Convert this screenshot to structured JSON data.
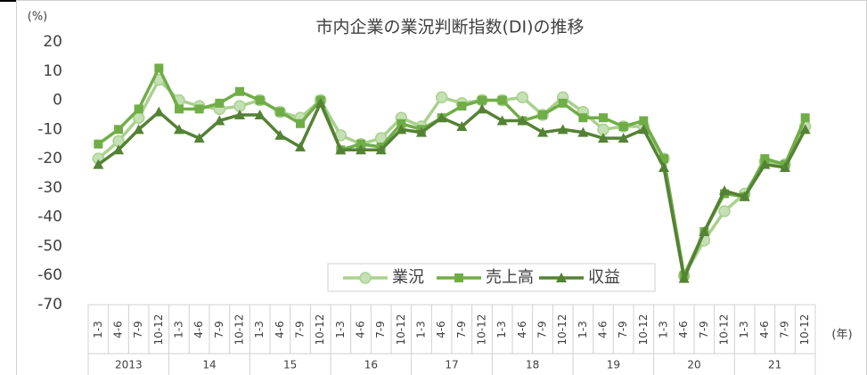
{
  "chart_data": {
    "type": "line",
    "title": "市内企業の業況判断指数(DI)の推移",
    "y_unit": "(%)",
    "x_unit": "(年)",
    "categories": [
      "1-3",
      "4-6",
      "7-9",
      "10-12",
      "1-3",
      "4-6",
      "7-9",
      "10-12",
      "1-3",
      "4-6",
      "7-9",
      "10-12",
      "1-3",
      "4-6",
      "7-9",
      "10-12",
      "1-3",
      "4-6",
      "7-9",
      "10-12",
      "1-3",
      "4-6",
      "7-9",
      "10-12",
      "1-3",
      "4-6",
      "7-9",
      "10-12",
      "1-3",
      "4-6",
      "7-9",
      "10-12",
      "1-3",
      "4-6",
      "7-9",
      "10-12"
    ],
    "groups": [
      "2013",
      "14",
      "15",
      "16",
      "17",
      "18",
      "19",
      "20",
      "21"
    ],
    "series": [
      {
        "name": "業況",
        "color": "#a9d18e",
        "marker": "circle",
        "values": [
          -20,
          -14,
          -6,
          7,
          0,
          -2,
          -3,
          -2,
          0,
          -4,
          -6,
          0,
          -12,
          -15,
          -13,
          -6,
          -9,
          1,
          -1,
          0,
          0,
          1,
          -5,
          1,
          -4,
          -10,
          -9,
          -9,
          -20,
          -60,
          -48,
          -38,
          -32,
          -21,
          -22,
          -9
        ]
      },
      {
        "name": "売上高",
        "color": "#70ad47",
        "marker": "square",
        "values": [
          -15,
          -10,
          -3,
          11,
          -3,
          -3,
          -1,
          3,
          0,
          -4,
          -8,
          0,
          -17,
          -15,
          -16,
          -8,
          -10,
          -6,
          -2,
          0,
          0,
          -7,
          -5,
          -1,
          -6,
          -6,
          -9,
          -7,
          -20,
          -60,
          -45,
          -32,
          -33,
          -20,
          -22,
          -6
        ]
      },
      {
        "name": "収益",
        "color": "#548235",
        "marker": "triangle",
        "values": [
          -22,
          -17,
          -10,
          -4,
          -10,
          -13,
          -7,
          -5,
          -5,
          -12,
          -16,
          -1,
          -17,
          -17,
          -17,
          -10,
          -11,
          -6,
          -9,
          -3,
          -7,
          -7,
          -11,
          -10,
          -11,
          -13,
          -13,
          -10,
          -23,
          -61,
          -45,
          -31,
          -33,
          -22,
          -23,
          -10
        ]
      }
    ],
    "ylim": [
      -70,
      20
    ],
    "yticks": [
      -70,
      -60,
      -50,
      -40,
      -30,
      -20,
      -10,
      0,
      10,
      20
    ],
    "grid": false,
    "legend": "center"
  }
}
